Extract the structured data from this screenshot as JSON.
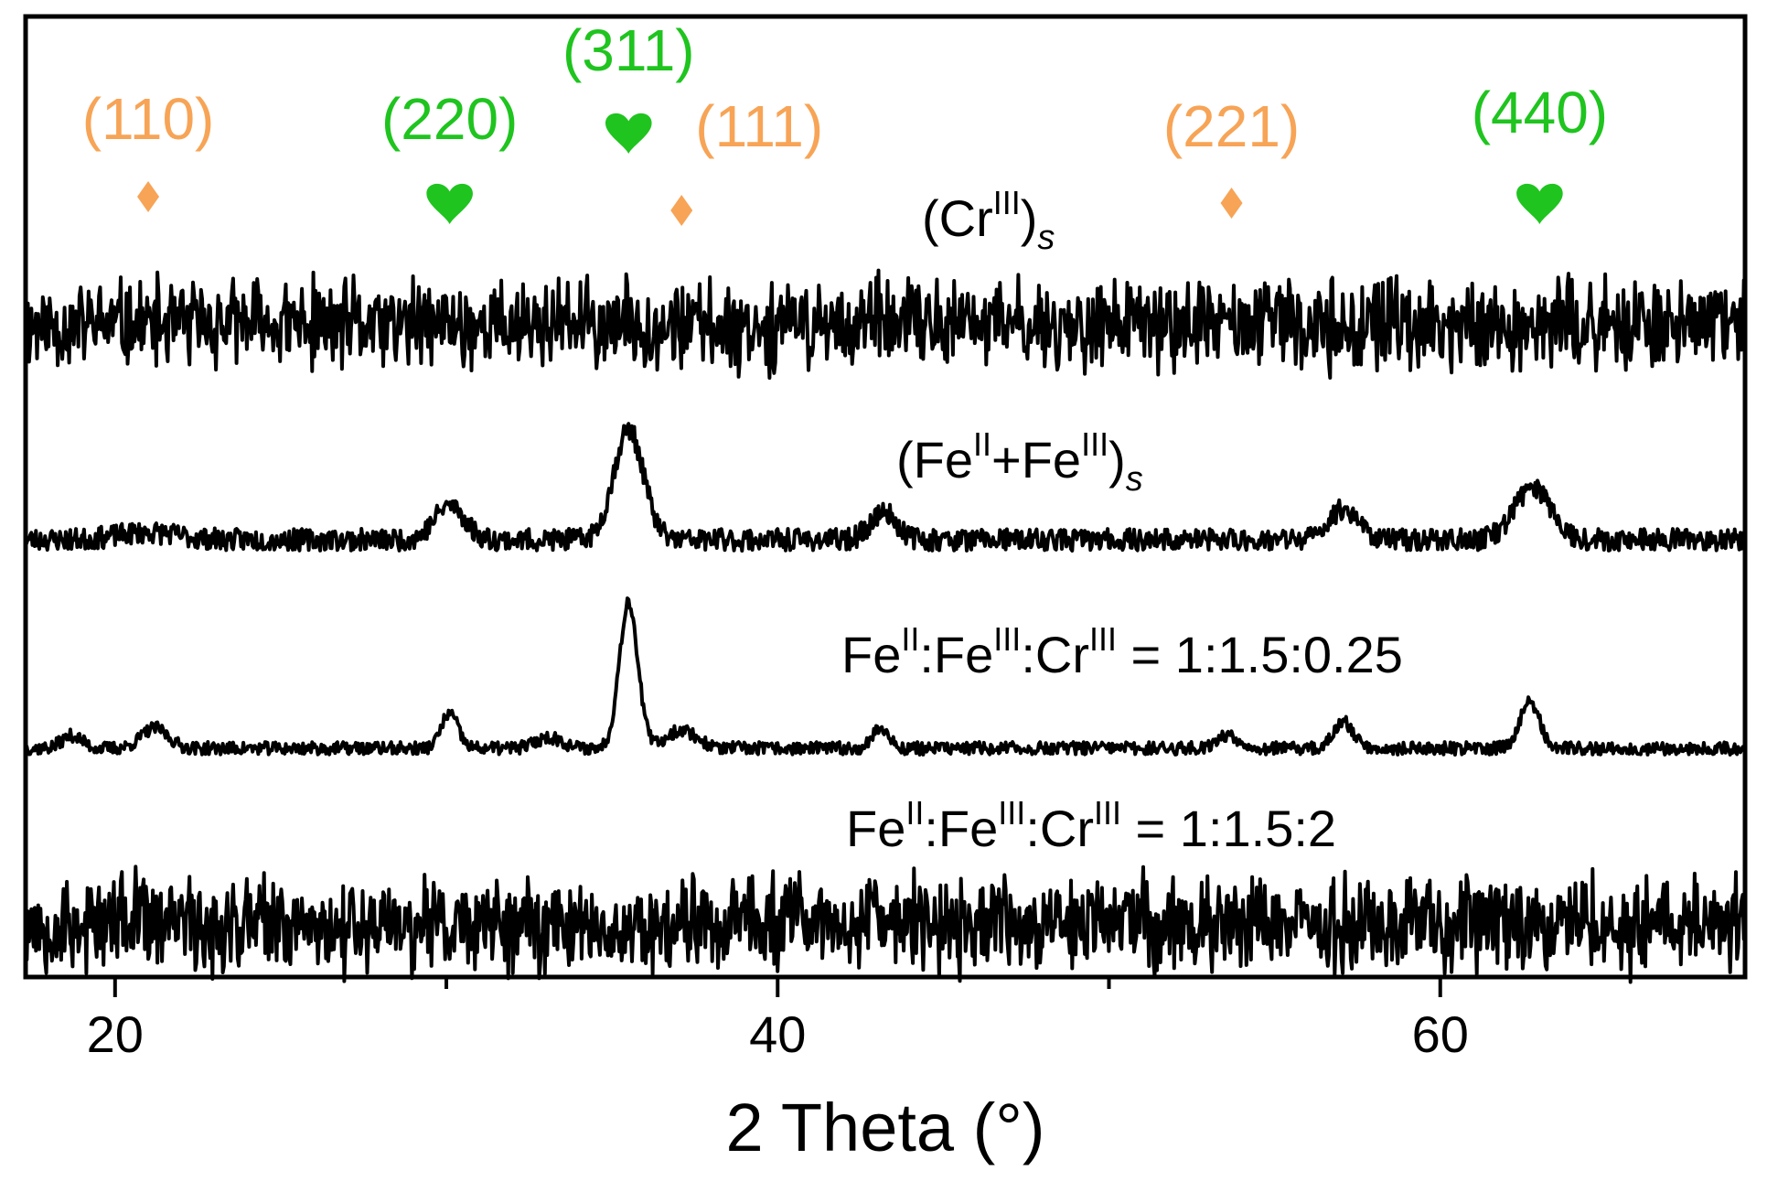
{
  "chart_data": {
    "type": "line",
    "xlabel": "2 Theta (°)",
    "ylabel": "",
    "xlim": [
      17.3,
      69.2
    ],
    "xticks": [
      20,
      40,
      60
    ],
    "yticks_shown": false,
    "grid": false,
    "legend": "none",
    "series": [
      {
        "name": "(Cr(III))s",
        "label_parts": [
          {
            "t": "(Cr"
          },
          {
            "t": "III",
            "s": "sup"
          },
          {
            "t": ")"
          },
          {
            "t": "s",
            "s": "sub"
          }
        ],
        "kind": "noise",
        "baseline_offset": 290,
        "noise_amplitude": 40,
        "seed": 11,
        "peaks": []
      },
      {
        "name": "(Fe(II)+Fe(III))s",
        "label_parts": [
          {
            "t": "(Fe"
          },
          {
            "t": "II",
            "s": "sup"
          },
          {
            "t": "+Fe"
          },
          {
            "t": "III",
            "s": "sup"
          },
          {
            "t": ")"
          },
          {
            "t": "s",
            "s": "sub"
          }
        ],
        "kind": "peaks",
        "baseline_offset": 180,
        "noise_amplitude": 12,
        "seed": 23,
        "peaks": [
          {
            "x": 21.0,
            "h": 8,
            "w": 0.9
          },
          {
            "x": 30.1,
            "h": 38,
            "w": 0.45
          },
          {
            "x": 35.5,
            "h": 120,
            "w": 0.45
          },
          {
            "x": 43.2,
            "h": 30,
            "w": 0.4
          },
          {
            "x": 57.1,
            "h": 34,
            "w": 0.45
          },
          {
            "x": 62.8,
            "h": 58,
            "w": 0.55
          }
        ]
      },
      {
        "name": "Fe(II):Fe(III):Cr(III) = 1:1.5:0.25",
        "label_parts": [
          {
            "t": "Fe"
          },
          {
            "t": "II",
            "s": "sup"
          },
          {
            "t": ":Fe"
          },
          {
            "t": "III",
            "s": "sup"
          },
          {
            "t": ":Cr"
          },
          {
            "t": "III",
            "s": "sup"
          },
          {
            "t": " = 1:1.5:0.25"
          }
        ],
        "kind": "peaks",
        "baseline_offset": 8,
        "noise_amplitude": 7,
        "seed": 37,
        "peaks": [
          {
            "x": 18.7,
            "h": 14,
            "w": 0.3
          },
          {
            "x": 21.2,
            "h": 22,
            "w": 0.4
          },
          {
            "x": 30.1,
            "h": 38,
            "w": 0.25
          },
          {
            "x": 33.1,
            "h": 12,
            "w": 0.4
          },
          {
            "x": 35.5,
            "h": 160,
            "w": 0.28
          },
          {
            "x": 37.1,
            "h": 20,
            "w": 0.45
          },
          {
            "x": 43.1,
            "h": 22,
            "w": 0.25
          },
          {
            "x": 53.6,
            "h": 14,
            "w": 0.35
          },
          {
            "x": 57.1,
            "h": 28,
            "w": 0.3
          },
          {
            "x": 62.7,
            "h": 50,
            "w": 0.3
          }
        ]
      },
      {
        "name": "Fe(II):Fe(III):Cr(III) = 1:1.5:2",
        "label_parts": [
          {
            "t": "Fe"
          },
          {
            "t": "II",
            "s": "sup"
          },
          {
            "t": ":Fe"
          },
          {
            "t": "III",
            "s": "sup"
          },
          {
            "t": ":Cr"
          },
          {
            "t": "III",
            "s": "sup"
          },
          {
            "t": " = 1:1.5:2"
          }
        ],
        "kind": "noise",
        "baseline_offset": 0,
        "noise_amplitude": 44,
        "seed": 53,
        "peaks": []
      }
    ],
    "reference_markers": [
      {
        "label": "(110)",
        "x": 21.0,
        "symbol": "diamond",
        "color": "#F7A456"
      },
      {
        "label": "(220)",
        "x": 30.1,
        "symbol": "heart",
        "color": "#1FC41F"
      },
      {
        "label": "(311)",
        "x": 35.5,
        "symbol": "heart",
        "color": "#1FC41F"
      },
      {
        "label": "(111)",
        "x": 37.1,
        "symbol": "diamond",
        "color": "#F7A456"
      },
      {
        "label": "(221)",
        "x": 53.7,
        "symbol": "diamond",
        "color": "#F7A456"
      },
      {
        "label": "(440)",
        "x": 63.0,
        "symbol": "heart",
        "color": "#1FC41F"
      }
    ],
    "colors": {
      "trace": "#000000",
      "phase_a": "#F7A456",
      "phase_b": "#1FC41F"
    }
  }
}
